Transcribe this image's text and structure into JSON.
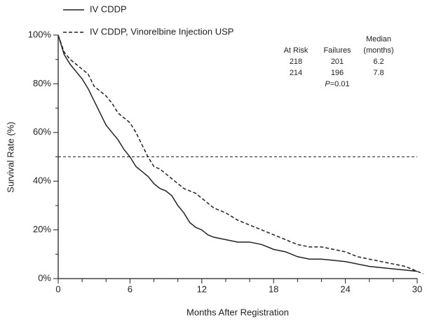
{
  "chart_data": {
    "type": "line",
    "xlabel": "Months After Registration",
    "ylabel": "Survival Rate (%)",
    "xlim": [
      0,
      30
    ],
    "ylim": [
      0,
      100
    ],
    "xticks": [
      0,
      6,
      12,
      18,
      24,
      30
    ],
    "x_minor_ticks": [
      2,
      4,
      8,
      10,
      14,
      16,
      20,
      22,
      26,
      28
    ],
    "yticks": [
      {
        "value": 0,
        "label": "0%"
      },
      {
        "value": 20,
        "label": "20%"
      },
      {
        "value": 40,
        "label": "40%"
      },
      {
        "value": 60,
        "label": "60%"
      },
      {
        "value": 80,
        "label": "80%"
      },
      {
        "value": 100,
        "label": "100%"
      }
    ],
    "y_minor_ticks": [
      10,
      30,
      50,
      70,
      90
    ],
    "hline": 50,
    "series": [
      {
        "name": "IV CDDP",
        "color": "#222",
        "dash": false,
        "x": [
          0,
          0.5,
          1,
          1.5,
          2,
          2.5,
          3,
          3.5,
          4,
          4.5,
          5,
          5.5,
          6,
          6.5,
          7,
          7.5,
          8,
          8.5,
          9,
          9.5,
          10,
          10.5,
          11,
          11.5,
          12,
          12.5,
          13,
          14,
          15,
          16,
          17,
          18,
          19,
          20,
          21,
          22,
          24,
          26,
          28,
          29,
          30
        ],
        "values": [
          100,
          92,
          88,
          85,
          82,
          78,
          73,
          68,
          63,
          60,
          57,
          53,
          50,
          46,
          44,
          42,
          39,
          37,
          36,
          34,
          30,
          27,
          23,
          21,
          20,
          18,
          17,
          16,
          15,
          15,
          14,
          12,
          11,
          9,
          8,
          8,
          7,
          5,
          4,
          3.5,
          3
        ]
      },
      {
        "name": "IV CDDP, Vinorelbine Injection USP",
        "color": "#222",
        "dash": true,
        "x": [
          0,
          0.5,
          1,
          1.5,
          2,
          2.5,
          3,
          3.5,
          4,
          4.5,
          5,
          5.5,
          6,
          6.5,
          7,
          7.5,
          8,
          8.5,
          9,
          9.5,
          10,
          10.5,
          11,
          11.5,
          12,
          12.5,
          13,
          14,
          15,
          16,
          17,
          18,
          19,
          20,
          21,
          22,
          24,
          25,
          26,
          27,
          28,
          29,
          30,
          30.5
        ],
        "values": [
          100,
          93,
          90,
          88,
          86,
          84,
          79,
          77,
          75,
          72,
          68,
          66,
          64,
          60,
          55,
          50,
          46,
          45,
          43,
          41,
          39,
          37,
          36,
          35,
          33,
          31,
          29,
          27,
          24,
          22,
          20,
          18,
          16,
          14,
          13,
          13,
          11,
          9,
          8,
          7,
          6,
          5,
          3,
          2
        ]
      }
    ],
    "table": {
      "headers": [
        "At Risk",
        "Failures",
        "Median"
      ],
      "median_unit": "(months)",
      "rows": [
        [
          "218",
          "201",
          "6.2"
        ],
        [
          "214",
          "196",
          "7.8"
        ]
      ],
      "p_label": "P",
      "p_value": "=0.01"
    }
  }
}
